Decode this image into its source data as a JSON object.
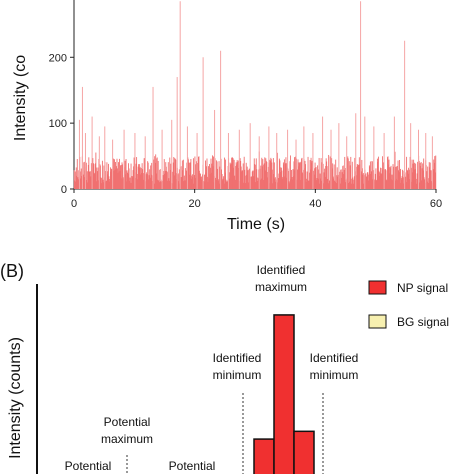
{
  "chart_data": [
    {
      "type": "bar",
      "panel_label": "",
      "xlabel": "Time (s)",
      "ylabel": "Intensity (co",
      "xlim": [
        0,
        60
      ],
      "ylim": [
        0,
        290
      ],
      "xticks": [
        0,
        20,
        40,
        60
      ],
      "yticks": [
        0,
        100,
        200
      ],
      "color": "#f07070",
      "baseline_range": [
        0,
        50
      ],
      "spikes": [
        {
          "x": 0.9,
          "y": 105
        },
        {
          "x": 1.4,
          "y": 155
        },
        {
          "x": 1.9,
          "y": 85
        },
        {
          "x": 3.0,
          "y": 110
        },
        {
          "x": 4.2,
          "y": 80
        },
        {
          "x": 5.1,
          "y": 95
        },
        {
          "x": 6.4,
          "y": 75
        },
        {
          "x": 8.3,
          "y": 90
        },
        {
          "x": 10.1,
          "y": 85
        },
        {
          "x": 11.8,
          "y": 80
        },
        {
          "x": 13.1,
          "y": 155
        },
        {
          "x": 14.6,
          "y": 90
        },
        {
          "x": 16.2,
          "y": 105
        },
        {
          "x": 17.1,
          "y": 170
        },
        {
          "x": 17.6,
          "y": 285
        },
        {
          "x": 18.8,
          "y": 95
        },
        {
          "x": 20.4,
          "y": 85
        },
        {
          "x": 21.4,
          "y": 200
        },
        {
          "x": 23.3,
          "y": 120
        },
        {
          "x": 24.3,
          "y": 210
        },
        {
          "x": 25.6,
          "y": 85
        },
        {
          "x": 27.4,
          "y": 90
        },
        {
          "x": 29.2,
          "y": 100
        },
        {
          "x": 30.7,
          "y": 80
        },
        {
          "x": 32.3,
          "y": 95
        },
        {
          "x": 33.6,
          "y": 85
        },
        {
          "x": 35.4,
          "y": 90
        },
        {
          "x": 36.8,
          "y": 75
        },
        {
          "x": 38.1,
          "y": 95
        },
        {
          "x": 39.6,
          "y": 85
        },
        {
          "x": 41.2,
          "y": 110
        },
        {
          "x": 42.6,
          "y": 90
        },
        {
          "x": 43.9,
          "y": 100
        },
        {
          "x": 45.2,
          "y": 80
        },
        {
          "x": 46.7,
          "y": 115
        },
        {
          "x": 47.5,
          "y": 285
        },
        {
          "x": 48.2,
          "y": 110
        },
        {
          "x": 49.7,
          "y": 95
        },
        {
          "x": 51.4,
          "y": 85
        },
        {
          "x": 53.1,
          "y": 110
        },
        {
          "x": 54.8,
          "y": 225
        },
        {
          "x": 55.8,
          "y": 100
        },
        {
          "x": 57.1,
          "y": 90
        },
        {
          "x": 58.3,
          "y": 85
        },
        {
          "x": 59.4,
          "y": 80
        }
      ]
    },
    {
      "type": "bar",
      "panel_label": "(B)",
      "ylabel": "Intensity (counts)",
      "series": [
        {
          "name": "NP signal",
          "color": "#f03030"
        },
        {
          "name": "BG signal",
          "color": "#f7f0b0"
        }
      ],
      "bars": [
        {
          "series": "NP signal",
          "value": 0.18
        },
        {
          "series": "NP signal",
          "value": 0.82
        },
        {
          "series": "NP signal",
          "value": 0.22
        }
      ],
      "ylim": [
        0,
        1
      ],
      "annotations": [
        {
          "text": [
            "Identified",
            "maximum"
          ],
          "target": "bar-2"
        },
        {
          "text": [
            "Identified",
            "minimum"
          ],
          "target": "left-edge"
        },
        {
          "text": [
            "Identified",
            "minimum"
          ],
          "target": "right-edge"
        },
        {
          "text": [
            "Potential",
            "maximum"
          ],
          "target": "left-peak"
        },
        {
          "text": [
            "Potential"
          ],
          "target": "far-left"
        },
        {
          "text": [
            "Potential"
          ],
          "target": "mid-left"
        }
      ]
    }
  ]
}
